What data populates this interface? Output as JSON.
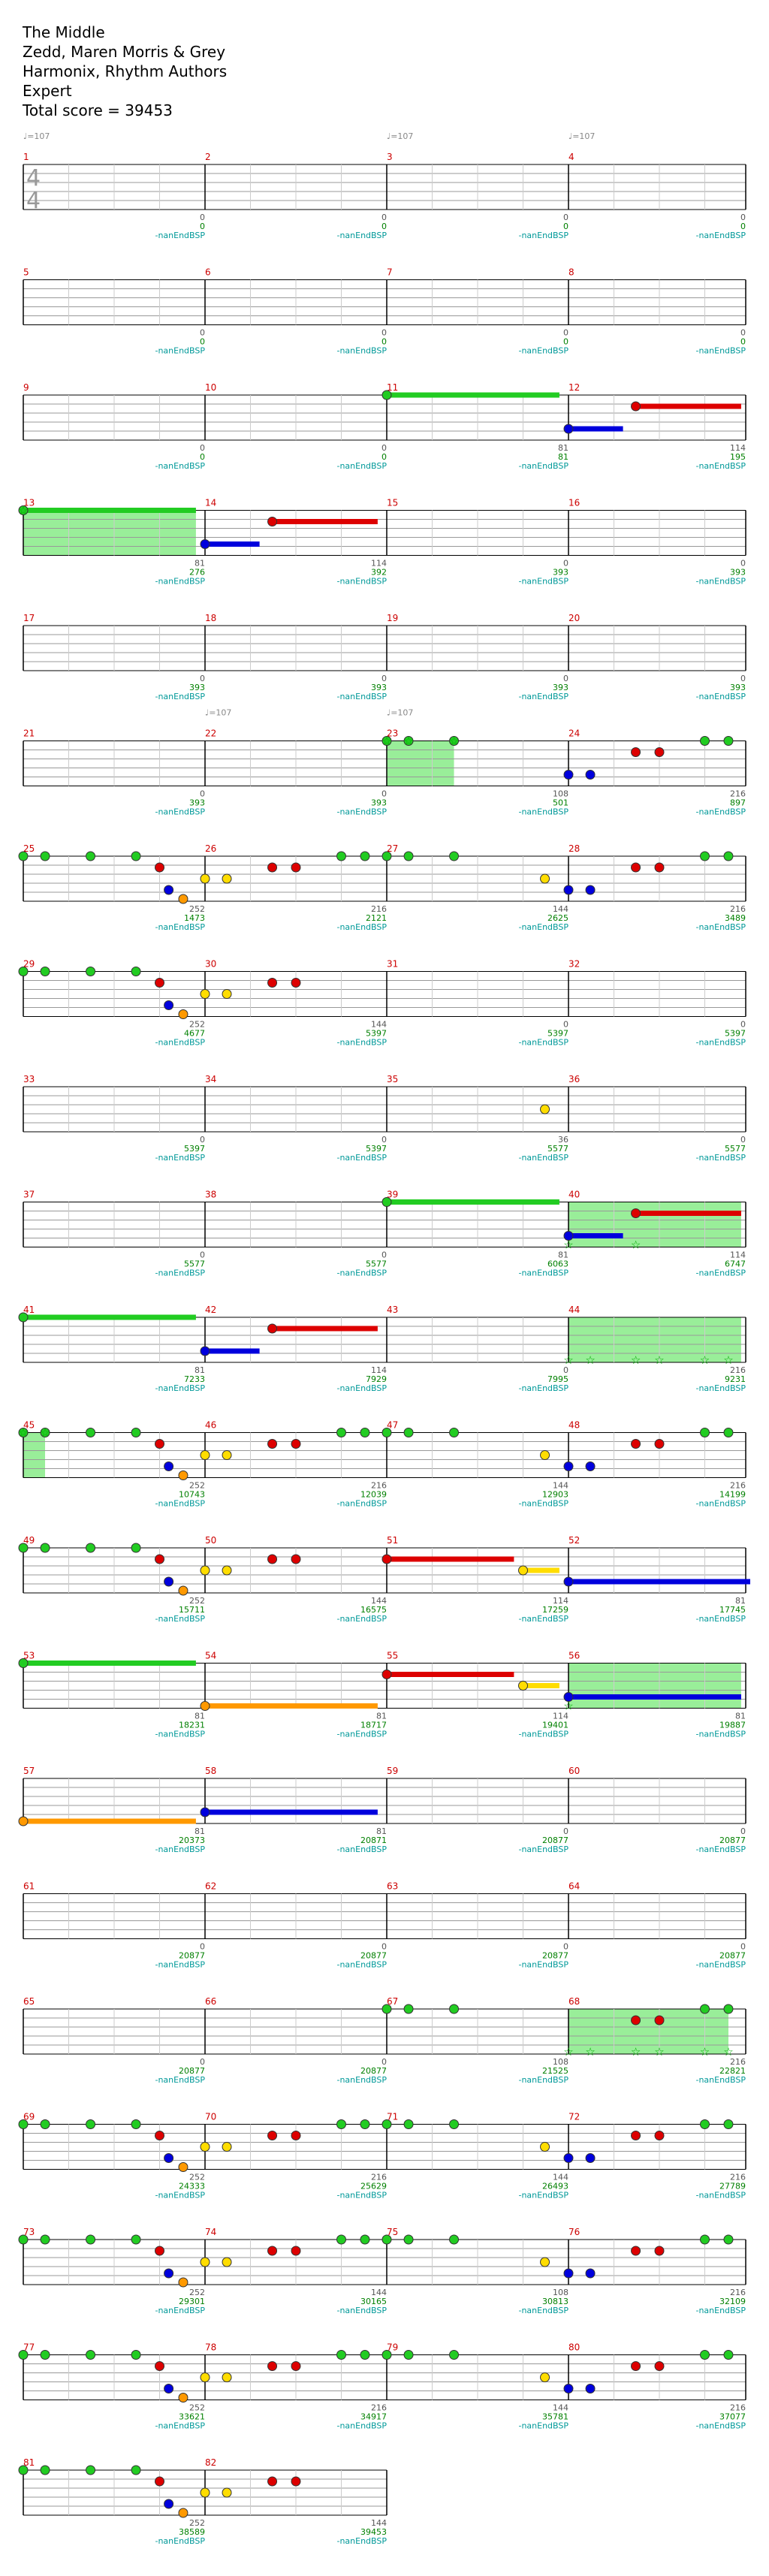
{
  "header": {
    "song": "The Middle",
    "artist": "Zedd, Maren Morris & Grey",
    "charter": "Harmonix, Rhythm Authors",
    "difficulty": "Expert",
    "total": "Total score = 39453"
  },
  "time_signature": [
    "4",
    "4"
  ],
  "tempo_label": "♩=107",
  "bp_label": "-nanEndBSP",
  "colors": {
    "G": "#22cc22",
    "R": "#dd0000",
    "Y": "#ffdd00",
    "B": "#0000dd",
    "O": "#ff9900",
    "sp": "#00aa00",
    "star_zone": "#99ee99",
    "staff": "#000000",
    "string": "#999999"
  },
  "rows": [
    {
      "m": [
        1,
        2,
        3,
        4
      ],
      "ms": [
        "0",
        "0",
        "0",
        "0"
      ],
      "sc": [
        "0",
        "0",
        "0",
        "0"
      ],
      "tempo": [
        0,
        2,
        3
      ],
      "ts": true
    },
    {
      "m": [
        5,
        6,
        7,
        8
      ],
      "ms": [
        "0",
        "0",
        "0",
        "0"
      ],
      "sc": [
        "0",
        "0",
        "0",
        "0"
      ]
    },
    {
      "m": [
        9,
        10,
        11,
        12
      ],
      "ms": [
        "0",
        "0",
        "81",
        "114"
      ],
      "sc": [
        "0",
        "0",
        "81",
        "195"
      ]
    },
    {
      "m": [
        13,
        14,
        15,
        16
      ],
      "ms": [
        "81",
        "114",
        "0",
        "0"
      ],
      "sc": [
        "276",
        "392",
        "393",
        "393"
      ]
    },
    {
      "m": [
        17,
        18,
        19,
        20
      ],
      "ms": [
        "0",
        "0",
        "0",
        "0"
      ],
      "sc": [
        "393",
        "393",
        "393",
        "393"
      ]
    },
    {
      "m": [
        21,
        22,
        23,
        24
      ],
      "ms": [
        "0",
        "0",
        "108",
        "216"
      ],
      "sc": [
        "393",
        "393",
        "501",
        "897"
      ],
      "tempo": [
        1,
        2
      ]
    },
    {
      "m": [
        25,
        26,
        27,
        28
      ],
      "ms": [
        "252",
        "216",
        "144",
        "216"
      ],
      "sc": [
        "1473",
        "2121",
        "2625",
        "3489"
      ]
    },
    {
      "m": [
        29,
        30,
        31,
        32
      ],
      "ms": [
        "252",
        "144",
        "0",
        "0"
      ],
      "sc": [
        "4677",
        "5397",
        "5397",
        "5397"
      ]
    },
    {
      "m": [
        33,
        34,
        35,
        36
      ],
      "ms": [
        "0",
        "0",
        "36",
        "0"
      ],
      "sc": [
        "5397",
        "5397",
        "5577",
        "5577"
      ]
    },
    {
      "m": [
        37,
        38,
        39,
        40
      ],
      "ms": [
        "0",
        "0",
        "81",
        "114"
      ],
      "sc": [
        "5577",
        "5577",
        "6063",
        "6747"
      ]
    },
    {
      "m": [
        41,
        42,
        43,
        44
      ],
      "ms": [
        "81",
        "114",
        "0",
        "216"
      ],
      "sc": [
        "7233",
        "7929",
        "7995",
        "9231"
      ]
    },
    {
      "m": [
        45,
        46,
        47,
        48
      ],
      "ms": [
        "252",
        "216",
        "144",
        "216"
      ],
      "sc": [
        "10743",
        "12039",
        "12903",
        "14199"
      ]
    },
    {
      "m": [
        49,
        50,
        51,
        52
      ],
      "ms": [
        "252",
        "144",
        "114",
        "81"
      ],
      "sc": [
        "15711",
        "16575",
        "17259",
        "17745"
      ]
    },
    {
      "m": [
        53,
        54,
        55,
        56
      ],
      "ms": [
        "81",
        "81",
        "114",
        "81"
      ],
      "sc": [
        "18231",
        "18717",
        "19401",
        "19887"
      ]
    },
    {
      "m": [
        57,
        58,
        59,
        60
      ],
      "ms": [
        "81",
        "81",
        "0",
        "0"
      ],
      "sc": [
        "20373",
        "20871",
        "20877",
        "20877"
      ]
    },
    {
      "m": [
        61,
        62,
        63,
        64
      ],
      "ms": [
        "0",
        "0",
        "0",
        "0"
      ],
      "sc": [
        "20877",
        "20877",
        "20877",
        "20877"
      ]
    },
    {
      "m": [
        65,
        66,
        67,
        68
      ],
      "ms": [
        "0",
        "0",
        "108",
        "216"
      ],
      "sc": [
        "20877",
        "20877",
        "21525",
        "22821"
      ]
    },
    {
      "m": [
        69,
        70,
        71,
        72
      ],
      "ms": [
        "252",
        "216",
        "144",
        "216"
      ],
      "sc": [
        "24333",
        "25629",
        "26493",
        "27789"
      ]
    },
    {
      "m": [
        73,
        74,
        75,
        76
      ],
      "ms": [
        "252",
        "144",
        "108",
        "216"
      ],
      "sc": [
        "29301",
        "30165",
        "30813",
        "32109"
      ]
    },
    {
      "m": [
        77,
        78,
        79,
        80
      ],
      "ms": [
        "252",
        "216",
        "144",
        "216"
      ],
      "sc": [
        "33621",
        "34917",
        "35781",
        "37077"
      ]
    },
    {
      "m": [
        81,
        82
      ],
      "ms": [
        "252",
        "144"
      ],
      "sc": [
        "38589",
        "39453"
      ]
    }
  ]
}
